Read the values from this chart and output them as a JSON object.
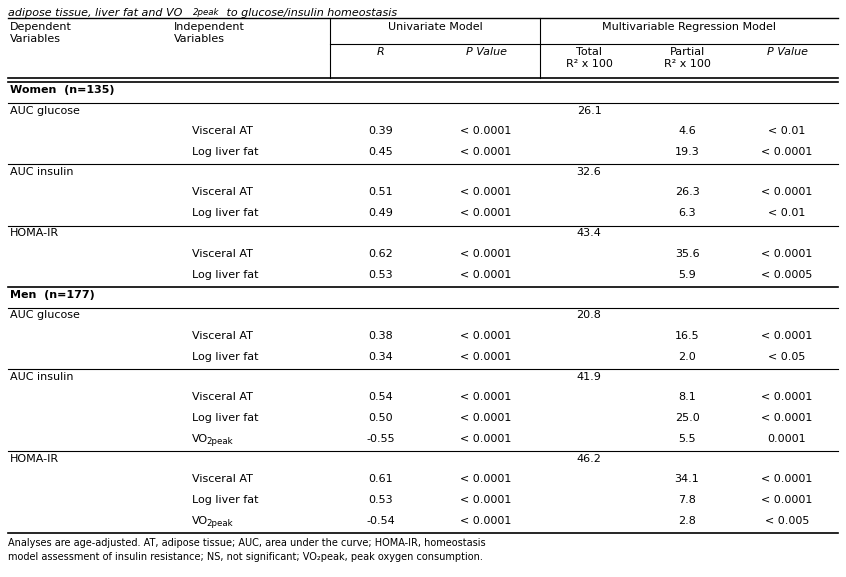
{
  "footer_line1": "Analyses are age-adjusted. AT, adipose tissue; AUC, area under the curve; HOMA-IR, homeostasis",
  "footer_line2": "model assessment of insulin resistance; NS, not significant; VO₂peak, peak oxygen consumption.",
  "rows": [
    {
      "type": "section",
      "label": "Women  (n=135)"
    },
    {
      "type": "dep",
      "dep": "AUC glucose",
      "indep": "",
      "R": "",
      "P_uni": "",
      "Total_R2": "26.1",
      "Partial_R2": "",
      "P_multi": ""
    },
    {
      "type": "data",
      "dep": "",
      "indep": "Visceral AT",
      "R": "0.39",
      "P_uni": "< 0.0001",
      "Total_R2": "",
      "Partial_R2": "4.6",
      "P_multi": "< 0.01"
    },
    {
      "type": "data",
      "dep": "",
      "indep": "Log liver fat",
      "R": "0.45",
      "P_uni": "< 0.0001",
      "Total_R2": "",
      "Partial_R2": "19.3",
      "P_multi": "< 0.0001"
    },
    {
      "type": "dep",
      "dep": "AUC insulin",
      "indep": "",
      "R": "",
      "P_uni": "",
      "Total_R2": "32.6",
      "Partial_R2": "",
      "P_multi": ""
    },
    {
      "type": "data",
      "dep": "",
      "indep": "Visceral AT",
      "R": "0.51",
      "P_uni": "< 0.0001",
      "Total_R2": "",
      "Partial_R2": "26.3",
      "P_multi": "< 0.0001"
    },
    {
      "type": "data",
      "dep": "",
      "indep": "Log liver fat",
      "R": "0.49",
      "P_uni": "< 0.0001",
      "Total_R2": "",
      "Partial_R2": "6.3",
      "P_multi": "< 0.01"
    },
    {
      "type": "dep",
      "dep": "HOMA-IR",
      "indep": "",
      "R": "",
      "P_uni": "",
      "Total_R2": "43.4",
      "Partial_R2": "",
      "P_multi": ""
    },
    {
      "type": "data",
      "dep": "",
      "indep": "Visceral AT",
      "R": "0.62",
      "P_uni": "< 0.0001",
      "Total_R2": "",
      "Partial_R2": "35.6",
      "P_multi": "< 0.0001"
    },
    {
      "type": "data",
      "dep": "",
      "indep": "Log liver fat",
      "R": "0.53",
      "P_uni": "< 0.0001",
      "Total_R2": "",
      "Partial_R2": "5.9",
      "P_multi": "< 0.0005"
    },
    {
      "type": "section",
      "label": "Men  (n=177)"
    },
    {
      "type": "dep",
      "dep": "AUC glucose",
      "indep": "",
      "R": "",
      "P_uni": "",
      "Total_R2": "20.8",
      "Partial_R2": "",
      "P_multi": ""
    },
    {
      "type": "data",
      "dep": "",
      "indep": "Visceral AT",
      "R": "0.38",
      "P_uni": "< 0.0001",
      "Total_R2": "",
      "Partial_R2": "16.5",
      "P_multi": "< 0.0001"
    },
    {
      "type": "data",
      "dep": "",
      "indep": "Log liver fat",
      "R": "0.34",
      "P_uni": "< 0.0001",
      "Total_R2": "",
      "Partial_R2": "2.0",
      "P_multi": "< 0.05"
    },
    {
      "type": "dep",
      "dep": "AUC insulin",
      "indep": "",
      "R": "",
      "P_uni": "",
      "Total_R2": "41.9",
      "Partial_R2": "",
      "P_multi": ""
    },
    {
      "type": "data",
      "dep": "",
      "indep": "Visceral AT",
      "R": "0.54",
      "P_uni": "< 0.0001",
      "Total_R2": "",
      "Partial_R2": "8.1",
      "P_multi": "< 0.0001"
    },
    {
      "type": "data",
      "dep": "",
      "indep": "Log liver fat",
      "R": "0.50",
      "P_uni": "< 0.0001",
      "Total_R2": "",
      "Partial_R2": "25.0",
      "P_multi": "< 0.0001"
    },
    {
      "type": "data_vo2",
      "dep": "",
      "indep": "VO₂peak",
      "R": "-0.55",
      "P_uni": "< 0.0001",
      "Total_R2": "",
      "Partial_R2": "5.5",
      "P_multi": "0.0001"
    },
    {
      "type": "dep",
      "dep": "HOMA-IR",
      "indep": "",
      "R": "",
      "P_uni": "",
      "Total_R2": "46.2",
      "Partial_R2": "",
      "P_multi": ""
    },
    {
      "type": "data",
      "dep": "",
      "indep": "Visceral AT",
      "R": "0.61",
      "P_uni": "< 0.0001",
      "Total_R2": "",
      "Partial_R2": "34.1",
      "P_multi": "< 0.0001"
    },
    {
      "type": "data",
      "dep": "",
      "indep": "Log liver fat",
      "R": "0.53",
      "P_uni": "< 0.0001",
      "Total_R2": "",
      "Partial_R2": "7.8",
      "P_multi": "< 0.0001"
    },
    {
      "type": "data_vo2",
      "dep": "",
      "indep": "VO₂peak",
      "R": "-0.54",
      "P_uni": "< 0.0001",
      "Total_R2": "",
      "Partial_R2": "2.8",
      "P_multi": "< 0.005"
    }
  ],
  "bg_color": "#ffffff",
  "text_color": "#000000",
  "font_size": 8.0,
  "font_size_small": 7.2,
  "font_size_footer": 7.0
}
